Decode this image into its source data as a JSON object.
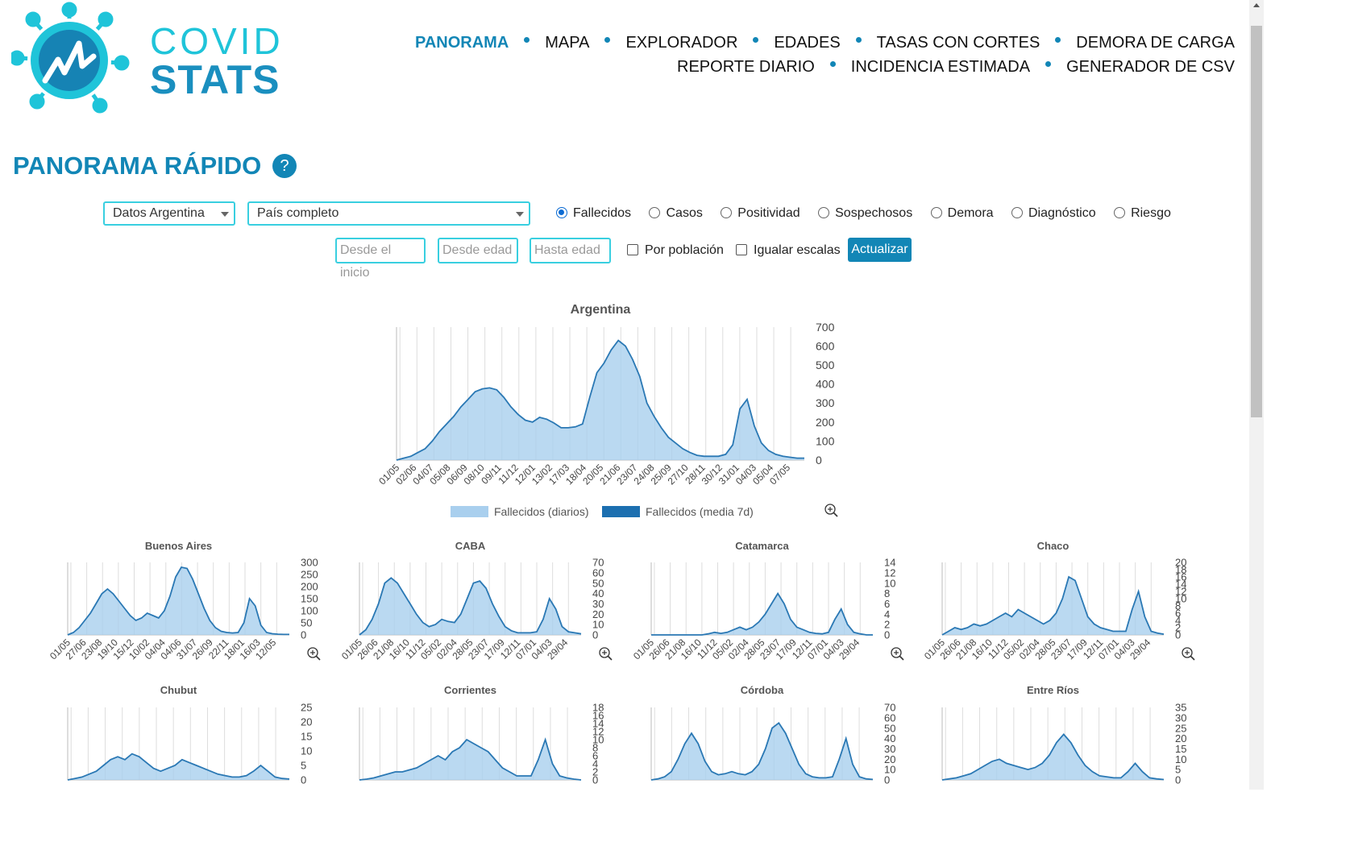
{
  "logo": {
    "word1": "COVID",
    "word2": "STATS"
  },
  "nav": {
    "row1": [
      "PANORAMA",
      "MAPA",
      "EXPLORADOR",
      "EDADES",
      "TASAS CON CORTES",
      "DEMORA DE CARGA"
    ],
    "row2": [
      "REPORTE DIARIO",
      "INCIDENCIA ESTIMADA",
      "GENERADOR DE CSV"
    ],
    "active": "PANORAMA"
  },
  "page": {
    "title": "PANORAMA RÁPIDO",
    "help": "?"
  },
  "filters": {
    "source": "Datos Argentina",
    "region": "País completo",
    "metrics": [
      "Fallecidos",
      "Casos",
      "Positividad",
      "Sospechosos",
      "Demora",
      "Diagnóstico",
      "Riesgo"
    ],
    "selected_metric": "Fallecidos",
    "from_placeholder": "Desde el inicio",
    "age_from_placeholder": "Desde edad",
    "age_to_placeholder": "Hasta edad",
    "per_population": "Por población",
    "equal_scales": "Igualar escalas",
    "update": "Actualizar"
  },
  "colors": {
    "accent": "#1286b6",
    "area": "#a9cfee",
    "line": "#2a78b4"
  },
  "chart_data": [
    {
      "type": "area",
      "title": "Argentina",
      "x_ticks": [
        "01/05",
        "02/06",
        "04/07",
        "05/08",
        "06/09",
        "08/10",
        "09/11",
        "11/12",
        "12/01",
        "13/02",
        "17/03",
        "18/04",
        "20/05",
        "21/06",
        "23/07",
        "24/08",
        "25/09",
        "27/10",
        "28/11",
        "30/12",
        "31/01",
        "04/03",
        "05/04",
        "07/05"
      ],
      "y_ticks": [
        0,
        100,
        200,
        300,
        400,
        500,
        600,
        700
      ],
      "ylim": [
        0,
        700
      ],
      "legend": [
        "Fallecidos (diarios)",
        "Fallecidos (media 7d)"
      ],
      "series": [
        {
          "name": "Fallecidos (media 7d)",
          "values": [
            0,
            10,
            20,
            40,
            60,
            100,
            150,
            190,
            230,
            280,
            320,
            360,
            375,
            380,
            370,
            330,
            280,
            240,
            210,
            200,
            225,
            215,
            195,
            170,
            170,
            175,
            190,
            330,
            460,
            510,
            580,
            630,
            600,
            530,
            440,
            300,
            230,
            170,
            120,
            90,
            60,
            40,
            25,
            20,
            20,
            20,
            30,
            80,
            270,
            320,
            180,
            90,
            50,
            30,
            20,
            15,
            10,
            10
          ]
        }
      ]
    },
    {
      "type": "area",
      "title": "Buenos Aires",
      "x_ticks": [
        "01/05",
        "27/06",
        "23/08",
        "19/10",
        "15/12",
        "10/02",
        "04/04",
        "04/06",
        "31/07",
        "26/09",
        "22/11",
        "18/01",
        "16/03",
        "12/05"
      ],
      "y_ticks": [
        0,
        50,
        100,
        150,
        200,
        250,
        300
      ],
      "ylim": [
        0,
        300
      ],
      "series": [
        {
          "name": "",
          "values": [
            0,
            10,
            30,
            60,
            90,
            130,
            170,
            190,
            170,
            140,
            110,
            80,
            60,
            70,
            90,
            80,
            70,
            100,
            160,
            240,
            280,
            275,
            230,
            170,
            110,
            60,
            30,
            15,
            10,
            8,
            10,
            50,
            150,
            120,
            40,
            10,
            5,
            3,
            2,
            2
          ]
        }
      ]
    },
    {
      "type": "area",
      "title": "CABA",
      "x_ticks": [
        "01/05",
        "26/06",
        "21/08",
        "16/10",
        "11/12",
        "05/02",
        "02/04",
        "28/05",
        "23/07",
        "17/09",
        "12/11",
        "07/01",
        "04/03",
        "29/04"
      ],
      "y_ticks": [
        0,
        10,
        20,
        30,
        40,
        50,
        60,
        70
      ],
      "ylim": [
        0,
        70
      ],
      "series": [
        {
          "name": "",
          "values": [
            0,
            5,
            15,
            30,
            50,
            55,
            50,
            40,
            30,
            20,
            12,
            8,
            10,
            15,
            13,
            12,
            20,
            35,
            50,
            52,
            45,
            30,
            18,
            8,
            4,
            2,
            2,
            2,
            3,
            15,
            35,
            25,
            8,
            3,
            2,
            1
          ]
        }
      ]
    },
    {
      "type": "area",
      "title": "Catamarca",
      "x_ticks": [
        "01/05",
        "26/06",
        "21/08",
        "16/10",
        "11/12",
        "05/02",
        "02/04",
        "28/05",
        "23/07",
        "17/09",
        "12/11",
        "07/01",
        "04/03",
        "29/04"
      ],
      "y_ticks": [
        0,
        2,
        4,
        6,
        8,
        10,
        12,
        14
      ],
      "ylim": [
        0,
        14
      ],
      "series": [
        {
          "name": "",
          "values": [
            0,
            0,
            0,
            0,
            0,
            0,
            0,
            0,
            0,
            0.2,
            0.5,
            0.3,
            0.5,
            1,
            1.5,
            1,
            1.5,
            2.5,
            4,
            6,
            8,
            6,
            3,
            1.5,
            1,
            0.5,
            0.3,
            0.2,
            0.5,
            3,
            5,
            2,
            0.5,
            0.2,
            0,
            0
          ]
        }
      ]
    },
    {
      "type": "area",
      "title": "Chaco",
      "x_ticks": [
        "01/05",
        "26/06",
        "21/08",
        "16/10",
        "11/12",
        "05/02",
        "02/04",
        "28/05",
        "23/07",
        "17/09",
        "12/11",
        "07/01",
        "04/03",
        "29/04"
      ],
      "y_ticks": [
        0,
        2,
        4,
        6,
        8,
        10,
        12,
        14,
        16,
        18,
        20
      ],
      "ylim": [
        0,
        20
      ],
      "series": [
        {
          "name": "",
          "values": [
            0,
            1,
            2,
            1.5,
            2,
            3,
            2.5,
            3,
            4,
            5,
            6,
            5,
            7,
            6,
            5,
            4,
            3,
            4,
            6,
            10,
            16,
            15,
            10,
            5,
            3,
            2,
            1.5,
            1,
            1,
            1,
            7,
            12,
            5,
            1,
            0.5,
            0.2
          ]
        }
      ]
    },
    {
      "type": "area",
      "title": "Chubut",
      "y_ticks": [
        0,
        5,
        10,
        15,
        20,
        25
      ],
      "ylim": [
        0,
        25
      ],
      "series": [
        {
          "name": "",
          "values": [
            0,
            0.5,
            1,
            2,
            3,
            5,
            7,
            8,
            7,
            9,
            8,
            6,
            4,
            3,
            4,
            5,
            7,
            6,
            5,
            4,
            3,
            2,
            1.5,
            1,
            1,
            1.5,
            3,
            5,
            3,
            1,
            0.5,
            0.3
          ]
        }
      ]
    },
    {
      "type": "area",
      "title": "Corrientes",
      "y_ticks": [
        0,
        2,
        4,
        6,
        8,
        10,
        12,
        14,
        16,
        18
      ],
      "ylim": [
        0,
        18
      ],
      "series": [
        {
          "name": "",
          "values": [
            0,
            0.2,
            0.5,
            1,
            1.5,
            2,
            2,
            2.5,
            3,
            4,
            5,
            6,
            5,
            7,
            8,
            10,
            9,
            8,
            7,
            5,
            3,
            2,
            1,
            1,
            1,
            5,
            10,
            4,
            1,
            0.5,
            0.2,
            0
          ]
        }
      ]
    },
    {
      "type": "area",
      "title": "Córdoba",
      "y_ticks": [
        0,
        10,
        20,
        30,
        40,
        50,
        60,
        70
      ],
      "ylim": [
        0,
        70
      ],
      "series": [
        {
          "name": "",
          "values": [
            0,
            1,
            3,
            8,
            20,
            35,
            45,
            35,
            18,
            8,
            5,
            6,
            8,
            6,
            5,
            8,
            15,
            30,
            50,
            55,
            45,
            30,
            15,
            6,
            3,
            2,
            2,
            3,
            20,
            40,
            15,
            3,
            1,
            0.5
          ]
        }
      ]
    },
    {
      "type": "area",
      "title": "Entre Ríos",
      "y_ticks": [
        0,
        5,
        10,
        15,
        20,
        25,
        30,
        35
      ],
      "ylim": [
        0,
        35
      ],
      "series": [
        {
          "name": "",
          "values": [
            0,
            0.5,
            1,
            2,
            3,
            5,
            7,
            9,
            10,
            8,
            7,
            6,
            5,
            6,
            8,
            12,
            18,
            22,
            18,
            12,
            7,
            4,
            2,
            1.5,
            1,
            1,
            4,
            8,
            4,
            1,
            0.5,
            0.2
          ]
        }
      ]
    }
  ]
}
